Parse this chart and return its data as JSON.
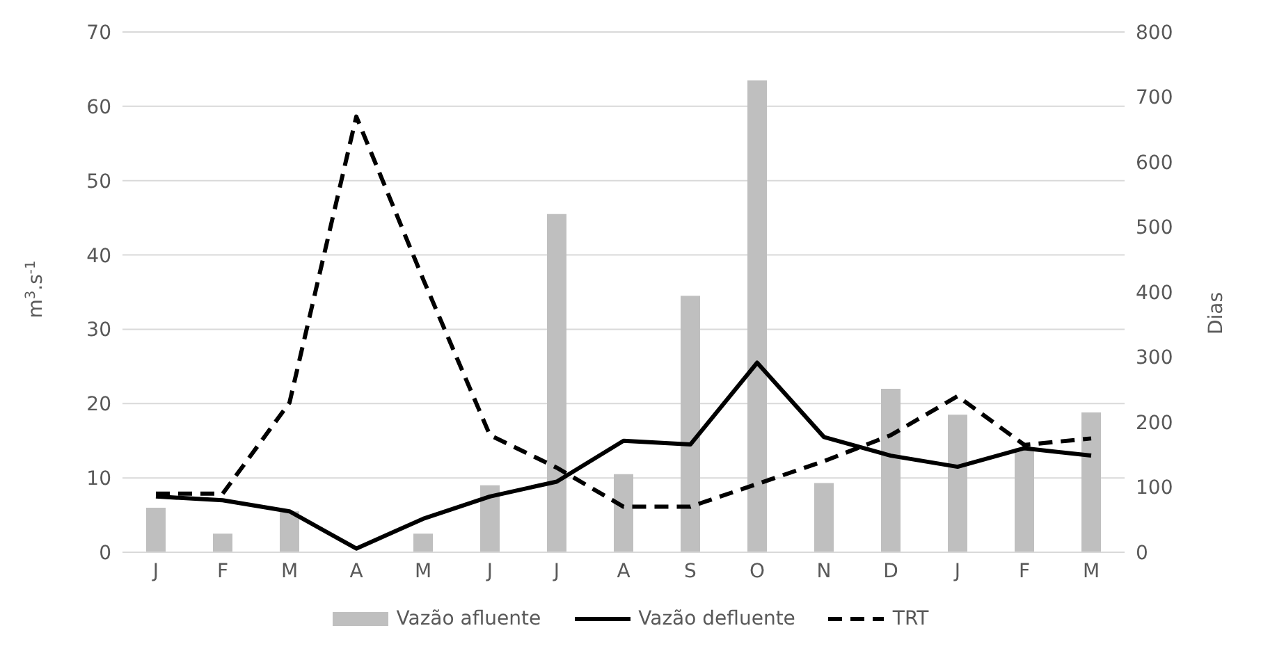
{
  "chart_data": {
    "type": "bar",
    "categories": [
      "J",
      "F",
      "M",
      "A",
      "M",
      "J",
      "J",
      "A",
      "S",
      "O",
      "N",
      "D",
      "J",
      "F",
      "M"
    ],
    "series": [
      {
        "name": "Vazão afluente",
        "color": "#bfbfbf",
        "values": [
          6,
          2.5,
          5.5,
          0,
          2.5,
          9,
          45.5,
          10.5,
          34.5,
          63.5,
          9.3,
          22,
          18.5,
          14,
          18.8
        ]
      },
      {
        "name": "Vazão defluente",
        "type": "line",
        "color": "#000000",
        "line_style": "solid",
        "values": [
          7.5,
          7,
          5.5,
          0.5,
          4.5,
          7.5,
          9.5,
          15,
          14.5,
          25.5,
          15.5,
          13,
          11.5,
          14,
          13
        ]
      },
      {
        "name": "TRT",
        "type": "line",
        "color": "#000000",
        "line_style": "dashed",
        "axis": "y2",
        "values": [
          90,
          90,
          230,
          670,
          420,
          180,
          130,
          70,
          70,
          105,
          140,
          180,
          240,
          165,
          175
        ]
      }
    ],
    "ylabel": "m$^{3}$.s$^{-1}$",
    "y2label": "Dias",
    "ylim": [
      0,
      70
    ],
    "yticks": [
      0,
      10,
      20,
      30,
      40,
      50,
      60,
      70
    ],
    "y2lim": [
      0,
      800
    ],
    "y2ticks": [
      0,
      100,
      200,
      300,
      400,
      500,
      600,
      700,
      800
    ],
    "grid": "y",
    "legend": "bottom",
    "marker": "none"
  }
}
